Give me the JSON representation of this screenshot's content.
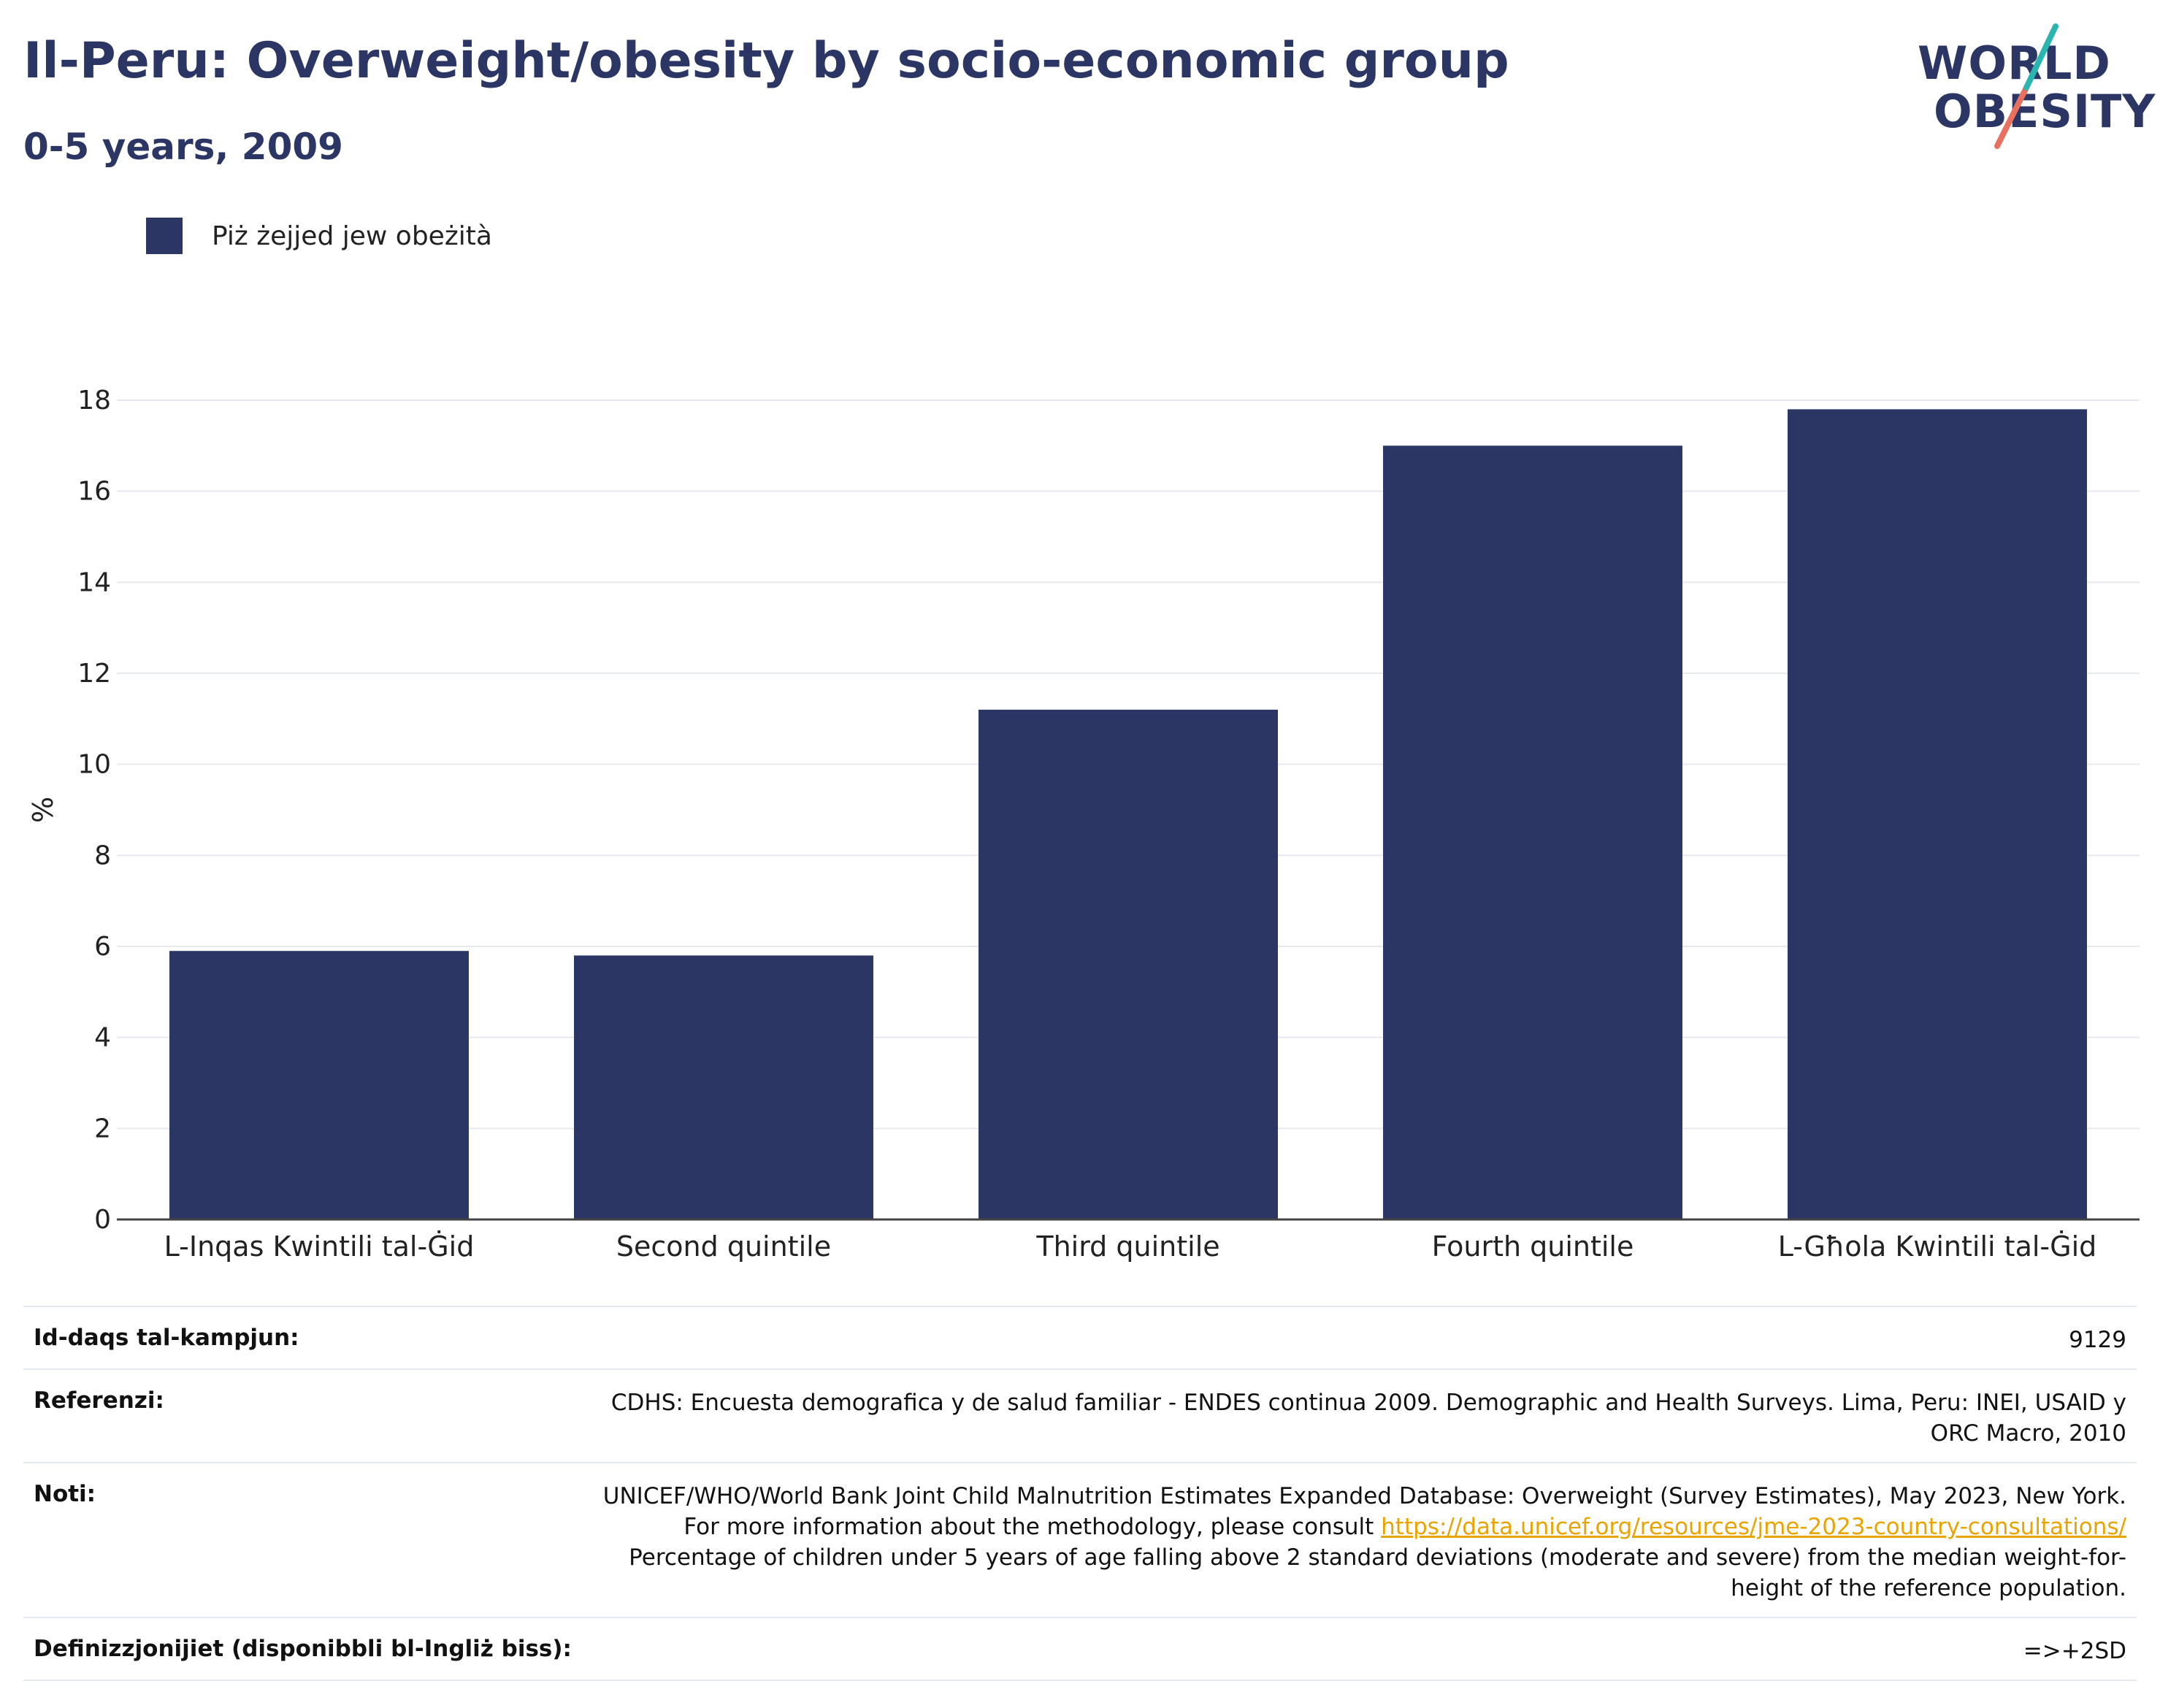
{
  "header": {
    "title": "Il-Peru: Overweight/obesity by socio-economic group",
    "subtitle": "0-5 years, 2009"
  },
  "logo": {
    "line1": "WORLD",
    "line2": "OBESITY",
    "colors": {
      "navy": "#2b3664",
      "teal": "#2bb5b0",
      "coral": "#e8705f"
    }
  },
  "legend": {
    "label": "Piż żejjed jew obeżità",
    "color": "#2b3664"
  },
  "chart_data": {
    "type": "bar",
    "categories": [
      "L-Inqas Kwintili tal-Ġid",
      "Second quintile",
      "Third quintile",
      "Fourth quintile",
      "L-Għola Kwintili tal-Ġid"
    ],
    "series": [
      {
        "name": "Piż żejjed jew obeżità",
        "values": [
          5.9,
          5.8,
          11.2,
          17.0,
          17.8
        ],
        "color": "#2b3664"
      }
    ],
    "ylabel": "%",
    "ylim": [
      0,
      18
    ],
    "yticks": [
      0,
      2,
      4,
      6,
      8,
      10,
      12,
      14,
      16,
      18
    ],
    "grid": true,
    "legend_position": "top-left"
  },
  "notes": {
    "sample_size": {
      "label": "Id-daqs tal-kampjun:",
      "value": "9129"
    },
    "references": {
      "label": "Referenzi:",
      "value": "CDHS: Encuesta demografica y de salud familiar - ENDES continua 2009. Demographic and Health Surveys. Lima, Peru: INEI, USAID y ORC Macro, 2010"
    },
    "notes": {
      "label": "Noti:",
      "text_before": "UNICEF/WHO/World Bank Joint Child Malnutrition Estimates Expanded Database: Overweight (Survey Estimates), May 2023, New York. For more information about the methodology, please consult ",
      "link": "https://data.unicef.org/resources/jme-2023-country-consultations/",
      "text_after": " Percentage of children under 5 years of age falling above 2 standard deviations (moderate and severe) from the median weight-for-height of the reference population."
    },
    "definitions": {
      "label": "Definizzjonijiet (disponibbli bl-Ingliż biss):",
      "value": "=>+2SD"
    }
  }
}
